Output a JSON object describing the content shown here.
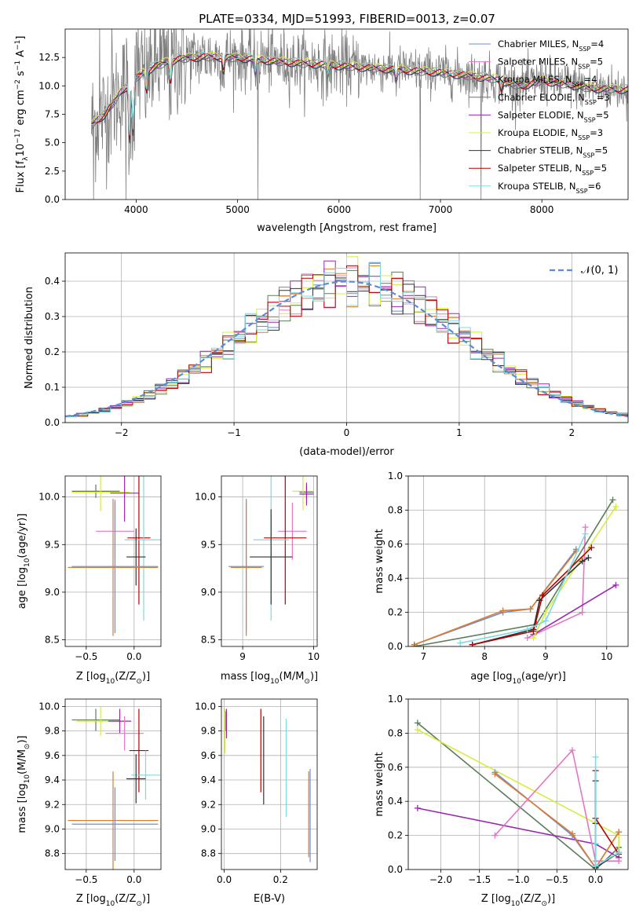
{
  "title": "PLATE=0334, MJD=51993, FIBERID=0013, z=0.07",
  "colors": {
    "Chabrier MILES": "#6b8fd6",
    "Salpeter MILES": "#e377c2",
    "Kroupa MILES": "#e07b2a",
    "Chabrier ELODIE": "#5a7d5a",
    "Salpeter ELODIE": "#9b27b0",
    "Kroupa ELODIE": "#d8ec3a",
    "Chabrier STELIB": "#333333",
    "Salpeter STELIB": "#b30000",
    "Kroupa STELIB": "#7fd8e0",
    "data": "#808080",
    "normal": "#5b8bd9"
  },
  "chart_data": [
    {
      "id": "spectrum",
      "type": "line",
      "title": "PLATE=0334, MJD=51993, FIBERID=0013, z=0.07",
      "xlabel": "wavelength [Angstrom, rest frame]",
      "ylabel_html": "Flux [f<tspan baseline-shift='sub' font-size='9'>λ</tspan>10<tspan baseline-shift='super' font-size='9'>−17</tspan> erg cm<tspan baseline-shift='super' font-size='9'>−2</tspan> s<tspan baseline-shift='super' font-size='9'>−1</tspan> A<tspan baseline-shift='super' font-size='9'>−1</tspan>]",
      "xlim": [
        3300,
        8850
      ],
      "ylim": [
        0,
        15
      ],
      "xticks": [
        4000,
        5000,
        6000,
        7000,
        8000
      ],
      "yticks": [
        "0.0",
        "2.5",
        "5.0",
        "7.5",
        "10.0",
        "12.5"
      ],
      "continuum": [
        [
          3550,
          6.5
        ],
        [
          3700,
          7.6
        ],
        [
          3850,
          9.5
        ],
        [
          4000,
          10.8
        ],
        [
          4200,
          11.8
        ],
        [
          4400,
          12.4
        ],
        [
          4700,
          12.6
        ],
        [
          5000,
          12.5
        ],
        [
          5500,
          12.1
        ],
        [
          6000,
          11.8
        ],
        [
          6500,
          11.5
        ],
        [
          7000,
          11.2
        ],
        [
          7500,
          10.7
        ],
        [
          7800,
          10.0
        ],
        [
          8000,
          10.5
        ],
        [
          8500,
          9.8
        ],
        [
          8850,
          9.7
        ]
      ],
      "legend": [
        {
          "name": "Chabrier MILES, N<tspan baseline-shift='sub' font-size='8'>SSP</tspan>=4",
          "key": "Chabrier MILES"
        },
        {
          "name": "Salpeter MILES, N<tspan baseline-shift='sub' font-size='8'>SSP</tspan>=5",
          "key": "Salpeter MILES"
        },
        {
          "name": "Kroupa MILES, N<tspan baseline-shift='sub' font-size='8'>SSP</tspan>=4",
          "key": "Kroupa MILES"
        },
        {
          "name": "Chabrier ELODIE, N<tspan baseline-shift='sub' font-size='8'>SSP</tspan>=3",
          "key": "Chabrier ELODIE"
        },
        {
          "name": "Salpeter ELODIE, N<tspan baseline-shift='sub' font-size='8'>SSP</tspan>=5",
          "key": "Salpeter ELODIE"
        },
        {
          "name": "Kroupa ELODIE, N<tspan baseline-shift='sub' font-size='8'>SSP</tspan>=3",
          "key": "Kroupa ELODIE"
        },
        {
          "name": "Chabrier STELIB, N<tspan baseline-shift='sub' font-size='8'>SSP</tspan>=5",
          "key": "Chabrier STELIB"
        },
        {
          "name": "Salpeter STELIB, N<tspan baseline-shift='sub' font-size='8'>SSP</tspan>=5",
          "key": "Salpeter STELIB"
        },
        {
          "name": "Kroupa STELIB, N<tspan baseline-shift='sub' font-size='8'>SSP</tspan>=6",
          "key": "Kroupa STELIB"
        }
      ]
    },
    {
      "id": "residuals",
      "type": "histogram",
      "xlabel": "(data-model)/error",
      "ylabel": "Normed distribution",
      "xlim": [
        -2.5,
        2.5
      ],
      "ylim": [
        0,
        0.48
      ],
      "xticks": [
        "−2",
        "−1",
        "0",
        "1",
        "2"
      ],
      "yticks": [
        "0.0",
        "0.1",
        "0.2",
        "0.3",
        "0.4"
      ],
      "legend": "𝒩(0, 1)",
      "bins": 50
    },
    {
      "id": "age-vs-Z",
      "type": "errorbar",
      "xlabel_html": "Z [log<tspan baseline-shift='sub' font-size='9'>10</tspan>(Z/Z<tspan baseline-shift='sub' font-size='9'>⊙</tspan>)]",
      "ylabel_html": "age  [log<tspan baseline-shift='sub' font-size='9'>10</tspan>(age/yr)]",
      "xlim": [
        -0.72,
        0.28
      ],
      "ylim": [
        8.43,
        10.22
      ],
      "xticks": [
        {
          "v": -0.5,
          "t": "−0.5"
        },
        {
          "v": 0.0,
          "t": "0.0"
        }
      ],
      "yticks": [
        {
          "v": 8.5,
          "t": "8.5"
        },
        {
          "v": 9.0,
          "t": "9.0"
        },
        {
          "v": 9.5,
          "t": "9.5"
        },
        {
          "v": 10.0,
          "t": "10.0"
        }
      ],
      "points": [
        {
          "key": "Chabrier ELODIE",
          "x": -0.4,
          "xerr": 0.25,
          "y": 10.06,
          "yerr": 0.07
        },
        {
          "key": "Kroupa ELODIE",
          "x": -0.35,
          "xerr": 0.3,
          "y": 10.05,
          "yerr": 0.2
        },
        {
          "key": "Salpeter ELODIE",
          "x": -0.1,
          "xerr": 0.15,
          "y": 10.04,
          "yerr": 0.3
        },
        {
          "key": "Salpeter MILES",
          "x": -0.2,
          "xerr": 0.2,
          "y": 9.64,
          "yerr": 0.3
        },
        {
          "key": "Salpeter STELIB",
          "x": 0.05,
          "xerr": 0.12,
          "y": 9.57,
          "yerr": 0.7
        },
        {
          "key": "Kroupa STELIB",
          "x": 0.1,
          "xerr": 0.2,
          "y": 9.55,
          "yerr": 0.85
        },
        {
          "key": "Chabrier STELIB",
          "x": 0.02,
          "xerr": 0.1,
          "y": 9.37,
          "yerr": 0.3
        },
        {
          "key": "Chabrier MILES",
          "x": -0.2,
          "xerr": 0.45,
          "y": 9.27,
          "yerr": 0.7
        },
        {
          "key": "Kroupa MILES",
          "x": -0.22,
          "xerr": 0.47,
          "y": 9.26,
          "yerr": 0.72
        }
      ]
    },
    {
      "id": "age-vs-mass",
      "type": "errorbar",
      "xlabel_html": "mass [log<tspan baseline-shift='sub' font-size='9'>10</tspan>(M/M<tspan baseline-shift='sub' font-size='9'>⊙</tspan>)]",
      "ylabel_html": "",
      "xlim": [
        8.7,
        10.05
      ],
      "ylim": [
        8.43,
        10.22
      ],
      "xticks": [
        {
          "v": 9,
          "t": "9"
        },
        {
          "v": 10,
          "t": "10"
        }
      ],
      "yticks": [
        {
          "v": 8.5,
          "t": "8.5"
        },
        {
          "v": 9.0,
          "t": "9.0"
        },
        {
          "v": 9.5,
          "t": "9.5"
        },
        {
          "v": 10.0,
          "t": "10.0"
        }
      ],
      "points": [
        {
          "key": "Chabrier ELODIE",
          "x": 9.9,
          "xerr": 0.1,
          "y": 10.05,
          "yerr": 0.07
        },
        {
          "key": "Kroupa ELODIE",
          "x": 9.85,
          "xerr": 0.15,
          "y": 10.06,
          "yerr": 0.2
        },
        {
          "key": "Salpeter ELODIE",
          "x": 9.9,
          "xerr": 0.1,
          "y": 10.03,
          "yerr": 0.12
        },
        {
          "key": "Salpeter MILES",
          "x": 9.7,
          "xerr": 0.2,
          "y": 9.64,
          "yerr": 0.3
        },
        {
          "key": "Salpeter STELIB",
          "x": 9.6,
          "xerr": 0.3,
          "y": 9.57,
          "yerr": 0.7
        },
        {
          "key": "Kroupa STELIB",
          "x": 9.4,
          "xerr": 0.25,
          "y": 9.55,
          "yerr": 0.85
        },
        {
          "key": "Chabrier STELIB",
          "x": 9.4,
          "xerr": 0.3,
          "y": 9.37,
          "yerr": 0.5
        },
        {
          "key": "Chabrier MILES",
          "x": 9.05,
          "xerr": 0.25,
          "y": 9.27,
          "yerr": 0.7
        },
        {
          "key": "Kroupa MILES",
          "x": 9.05,
          "xerr": 0.22,
          "y": 9.26,
          "yerr": 0.72
        }
      ]
    },
    {
      "id": "mass-weight-vs-age",
      "type": "line",
      "xlabel_html": "age  [log<tspan baseline-shift='sub' font-size='9'>10</tspan>(age/yr)]",
      "ylabel_html": "mass weight",
      "xlim": [
        6.75,
        10.35
      ],
      "ylim": [
        0,
        1
      ],
      "xticks": [
        {
          "v": 7,
          "t": "7"
        },
        {
          "v": 8,
          "t": "8"
        },
        {
          "v": 9,
          "t": "9"
        },
        {
          "v": 10,
          "t": "10"
        }
      ],
      "yticks": [
        {
          "v": 0,
          "t": "0.0"
        },
        {
          "v": 0.2,
          "t": "0.2"
        },
        {
          "v": 0.4,
          "t": "0.4"
        },
        {
          "v": 0.6,
          "t": "0.6"
        },
        {
          "v": 0.8,
          "t": "0.8"
        },
        {
          "v": 1.0,
          "t": "1.0"
        }
      ],
      "series": [
        {
          "key": "Chabrier MILES",
          "x": [
            6.85,
            8.3,
            8.75,
            9.5
          ],
          "y": [
            0.01,
            0.2,
            0.22,
            0.57
          ]
        },
        {
          "key": "Kroupa MILES",
          "x": [
            6.85,
            8.3,
            8.75,
            9.5
          ],
          "y": [
            0.01,
            0.21,
            0.22,
            0.56
          ]
        },
        {
          "key": "Salpeter MILES",
          "x": [
            8.7,
            9.6,
            9.65
          ],
          "y": [
            0.05,
            0.2,
            0.7
          ]
        },
        {
          "key": "Salpeter ELODIE",
          "x": [
            8.8,
            10.15
          ],
          "y": [
            0.07,
            0.36
          ]
        },
        {
          "key": "Chabrier ELODIE",
          "x": [
            6.85,
            8.85,
            10.1
          ],
          "y": [
            0.0,
            0.13,
            0.86
          ]
        },
        {
          "key": "Kroupa ELODIE",
          "x": [
            8.8,
            9.0,
            10.15
          ],
          "y": [
            0.05,
            0.2,
            0.82
          ]
        },
        {
          "key": "Chabrier STELIB",
          "x": [
            7.8,
            8.8,
            8.9,
            9.6,
            9.7
          ],
          "y": [
            0.01,
            0.1,
            0.27,
            0.5,
            0.52
          ]
        },
        {
          "key": "Salpeter STELIB",
          "x": [
            7.8,
            8.8,
            8.95,
            9.75
          ],
          "y": [
            0.01,
            0.09,
            0.3,
            0.58
          ]
        },
        {
          "key": "Kroupa STELIB",
          "x": [
            7.6,
            8.7,
            9.0,
            9.65
          ],
          "y": [
            0.02,
            0.1,
            0.15,
            0.66
          ]
        }
      ]
    },
    {
      "id": "mass-vs-Z",
      "type": "errorbar",
      "xlabel_html": "Z [log<tspan baseline-shift='sub' font-size='9'>10</tspan>(Z/Z<tspan baseline-shift='sub' font-size='9'>⊙</tspan>)]",
      "ylabel_html": "mass [log<tspan baseline-shift='sub' font-size='9'>10</tspan>(M/M<tspan baseline-shift='sub' font-size='9'>⊙</tspan>)]",
      "xlim": [
        -0.72,
        0.28
      ],
      "ylim": [
        8.67,
        10.06
      ],
      "xticks": [
        {
          "v": -0.5,
          "t": "−0.5"
        },
        {
          "v": 0.0,
          "t": "0.0"
        }
      ],
      "yticks": [
        {
          "v": 8.8,
          "t": "8.8"
        },
        {
          "v": 9.0,
          "t": "9.0"
        },
        {
          "v": 9.2,
          "t": "9.2"
        },
        {
          "v": 9.4,
          "t": "9.4"
        },
        {
          "v": 9.6,
          "t": "9.6"
        },
        {
          "v": 9.8,
          "t": "9.8"
        },
        {
          "v": 10.0,
          "t": "10.0"
        }
      ],
      "points": [
        {
          "key": "Chabrier ELODIE",
          "x": -0.4,
          "xerr": 0.25,
          "y": 9.89,
          "yerr": 0.09
        },
        {
          "key": "Kroupa ELODIE",
          "x": -0.35,
          "xerr": 0.25,
          "y": 9.88,
          "yerr": 0.12
        },
        {
          "key": "Salpeter ELODIE",
          "x": -0.15,
          "xerr": 0.12,
          "y": 9.88,
          "yerr": 0.1
        },
        {
          "key": "Salpeter MILES",
          "x": -0.1,
          "xerr": 0.2,
          "y": 9.78,
          "yerr": 0.14
        },
        {
          "key": "Salpeter STELIB",
          "x": 0.05,
          "xerr": 0.1,
          "y": 9.64,
          "yerr": 0.34
        },
        {
          "key": "Kroupa STELIB",
          "x": 0.12,
          "xerr": 0.15,
          "y": 9.44,
          "yerr": 0.2
        },
        {
          "key": "Chabrier STELIB",
          "x": 0.02,
          "xerr": 0.1,
          "y": 9.41,
          "yerr": 0.2
        },
        {
          "key": "Kroupa MILES",
          "x": -0.22,
          "xerr": 0.47,
          "y": 9.07,
          "yerr": 0.4
        },
        {
          "key": "Chabrier MILES",
          "x": -0.2,
          "xerr": 0.45,
          "y": 9.04,
          "yerr": 0.3
        }
      ]
    },
    {
      "id": "mass-vs-ebv",
      "type": "errorbar",
      "xlabel_html": "E(B-V)",
      "ylabel_html": "",
      "xlim": [
        -0.01,
        0.33
      ],
      "ylim": [
        8.67,
        10.06
      ],
      "xticks": [
        {
          "v": 0.0,
          "t": "0.0"
        },
        {
          "v": 0.2,
          "t": "0.2"
        }
      ],
      "yticks": [
        {
          "v": 8.8,
          "t": "8.8"
        },
        {
          "v": 9.0,
          "t": "9.0"
        },
        {
          "v": 9.2,
          "t": "9.2"
        },
        {
          "v": 9.4,
          "t": "9.4"
        },
        {
          "v": 9.6,
          "t": "9.6"
        },
        {
          "v": 9.8,
          "t": "9.8"
        },
        {
          "v": 10.0,
          "t": "10.0"
        }
      ],
      "points": [
        {
          "key": "Chabrier ELODIE",
          "x": 0.005,
          "xerr": 0,
          "y": 9.88,
          "yerr": 0.08
        },
        {
          "key": "Salpeter ELODIE",
          "x": 0.008,
          "xerr": 0,
          "y": 9.86,
          "yerr": 0.12
        },
        {
          "key": "Kroupa ELODIE",
          "x": 0.003,
          "xerr": 0,
          "y": 9.8,
          "yerr": 0.18
        },
        {
          "key": "Salpeter STELIB",
          "x": 0.13,
          "xerr": 0,
          "y": 9.64,
          "yerr": 0.34
        },
        {
          "key": "Chabrier STELIB",
          "x": 0.14,
          "xerr": 0,
          "y": 9.56,
          "yerr": 0.36
        },
        {
          "key": "Kroupa STELIB",
          "x": 0.22,
          "xerr": 0,
          "y": 9.5,
          "yerr": 0.4
        },
        {
          "key": "Chabrier MILES",
          "x": 0.305,
          "xerr": 0,
          "y": 9.11,
          "yerr": 0.38
        },
        {
          "key": "Kroupa MILES",
          "x": 0.3,
          "xerr": 0,
          "y": 9.12,
          "yerr": 0.35
        }
      ]
    },
    {
      "id": "mass-weight-vs-Z",
      "type": "line",
      "xlabel_html": "Z [log<tspan baseline-shift='sub' font-size='9'>10</tspan>(Z/Z<tspan baseline-shift='sub' font-size='9'>⊙</tspan>)]",
      "ylabel_html": "mass weight",
      "xlim": [
        -2.42,
        0.42
      ],
      "ylim": [
        0,
        1
      ],
      "xticks": [
        {
          "v": -2.0,
          "t": "−2.0"
        },
        {
          "v": -1.5,
          "t": "−1.5"
        },
        {
          "v": -1.0,
          "t": "−1.0"
        },
        {
          "v": -0.5,
          "t": "−0.5"
        },
        {
          "v": 0.0,
          "t": "0.0"
        }
      ],
      "yticks": [
        {
          "v": 0,
          "t": "0.0"
        },
        {
          "v": 0.2,
          "t": "0.2"
        },
        {
          "v": 0.4,
          "t": "0.4"
        },
        {
          "v": 0.6,
          "t": "0.6"
        },
        {
          "v": 0.8,
          "t": "0.8"
        },
        {
          "v": 1.0,
          "t": "1.0"
        }
      ],
      "series": [
        {
          "key": "Chabrier ELODIE",
          "x": [
            -2.3,
            0.0,
            0.3
          ],
          "y": [
            0.86,
            0.0,
            0.13
          ]
        },
        {
          "key": "Kroupa ELODIE",
          "x": [
            -2.3,
            0.3,
            0.3
          ],
          "y": [
            0.82,
            0.2,
            0.05
          ]
        },
        {
          "key": "Salpeter ELODIE",
          "x": [
            -2.3,
            0.0,
            0.3
          ],
          "y": [
            0.36,
            0.15,
            0.07
          ]
        },
        {
          "key": "Chabrier MILES",
          "x": [
            -1.3,
            -0.3,
            0.0,
            0.3
          ],
          "y": [
            0.57,
            0.2,
            0.01,
            0.22
          ]
        },
        {
          "key": "Kroupa MILES",
          "x": [
            -1.3,
            -0.3,
            0.0,
            0.3
          ],
          "y": [
            0.56,
            0.21,
            0.01,
            0.22
          ]
        },
        {
          "key": "Salpeter MILES",
          "x": [
            -1.3,
            -0.3,
            0.0,
            0.3
          ],
          "y": [
            0.2,
            0.7,
            0.05,
            0.05
          ]
        },
        {
          "key": "Chabrier STELIB",
          "x": [
            0.0,
            0.0,
            0.0,
            0.3
          ],
          "y": [
            0.52,
            0.27,
            0.01,
            0.1
          ]
        },
        {
          "key": "Salpeter STELIB",
          "x": [
            0.0,
            0.0,
            0.3
          ],
          "y": [
            0.58,
            0.3,
            0.09
          ]
        },
        {
          "key": "Kroupa STELIB",
          "x": [
            0.0,
            0.0,
            0.0,
            0.3
          ],
          "y": [
            0.66,
            0.15,
            0.02,
            0.1
          ]
        }
      ]
    }
  ]
}
